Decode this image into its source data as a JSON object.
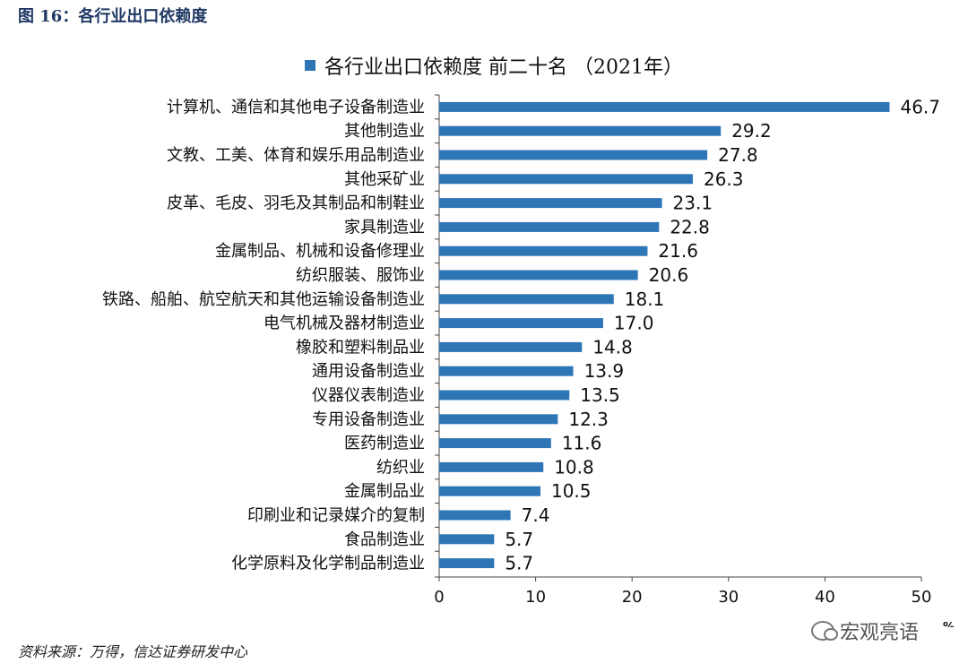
{
  "figure": {
    "title": "图 16：各行业出口依赖度",
    "source": "资料来源：万得，信达证券研发中心",
    "watermark": "宏观亮语"
  },
  "chart_data": {
    "type": "bar",
    "orientation": "horizontal",
    "series_name": "各行业出口依赖度 前二十名 （2021年）",
    "unit": "%",
    "categories": [
      "计算机、通信和其他电子设备制造业",
      "其他制造业",
      "文教、工美、体育和娱乐用品制造业",
      "其他采矿业",
      "皮革、毛皮、羽毛及其制品和制鞋业",
      "家具制造业",
      "金属制品、机械和设备修理业",
      "纺织服装、服饰业",
      "铁路、船舶、航空航天和其他运输设备制造业",
      "电气机械及器材制造业",
      "橡胶和塑料制品业",
      "通用设备制造业",
      "仪器仪表制造业",
      "专用设备制造业",
      "医药制造业",
      "纺织业",
      "金属制品业",
      "印刷业和记录媒介的复制",
      "食品制造业",
      "化学原料及化学制品制造业"
    ],
    "values": [
      46.7,
      29.2,
      27.8,
      26.3,
      23.1,
      22.8,
      21.6,
      20.6,
      18.1,
      17.0,
      14.8,
      13.9,
      13.5,
      12.3,
      11.6,
      10.8,
      10.5,
      7.4,
      5.7,
      5.7
    ],
    "value_labels": [
      "46.7",
      "29.2",
      "27.8",
      "26.3",
      "23.1",
      "22.8",
      "21.6",
      "20.6",
      "18.1",
      "17.0",
      "14.8",
      "13.9",
      "13.5",
      "12.3",
      "11.6",
      "10.8",
      "10.5",
      "7.4",
      "5.7",
      "5.7"
    ],
    "xlim": [
      0,
      50
    ],
    "xticks": [
      0,
      10,
      20,
      30,
      40,
      50
    ],
    "grid": false,
    "legend_position": "top-center",
    "bar_color": "#2e75b6"
  }
}
